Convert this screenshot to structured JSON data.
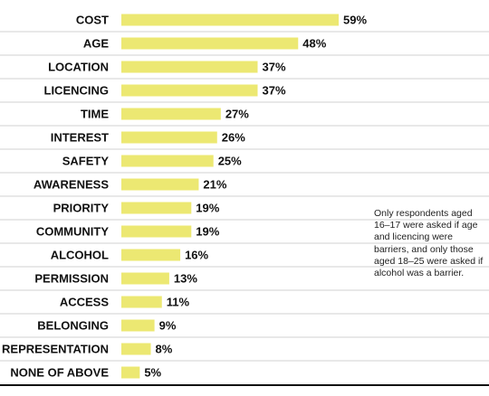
{
  "chart_data": {
    "type": "bar",
    "orientation": "horizontal",
    "categories": [
      "COST",
      "AGE",
      "LOCATION",
      "LICENCING",
      "TIME",
      "INTEREST",
      "SAFETY",
      "AWARENESS",
      "PRIORITY",
      "COMMUNITY",
      "ALCOHOL",
      "PERMISSION",
      "ACCESS",
      "BELONGING",
      "REPRESENTATION",
      "NONE OF ABOVE"
    ],
    "values": [
      59,
      48,
      37,
      37,
      27,
      26,
      25,
      21,
      19,
      19,
      16,
      13,
      11,
      9,
      8,
      5
    ],
    "value_labels": [
      "59%",
      "48%",
      "37%",
      "37%",
      "27%",
      "26%",
      "25%",
      "21%",
      "19%",
      "19%",
      "16%",
      "13%",
      "11%",
      "9%",
      "8%",
      "5%"
    ],
    "unit": "%",
    "title": "",
    "xlabel": "",
    "ylabel": "",
    "xlim": [
      0,
      59
    ],
    "grid": "horizontal row separators",
    "bar_color": "#ece872",
    "separator_color": "#d0d0d0",
    "axis_color": "#111111"
  },
  "note": {
    "text": "Only respondents aged 16–17 were asked if age and licencing were barriers, and only those aged 18–25 were asked if alcohol was a barrier."
  }
}
